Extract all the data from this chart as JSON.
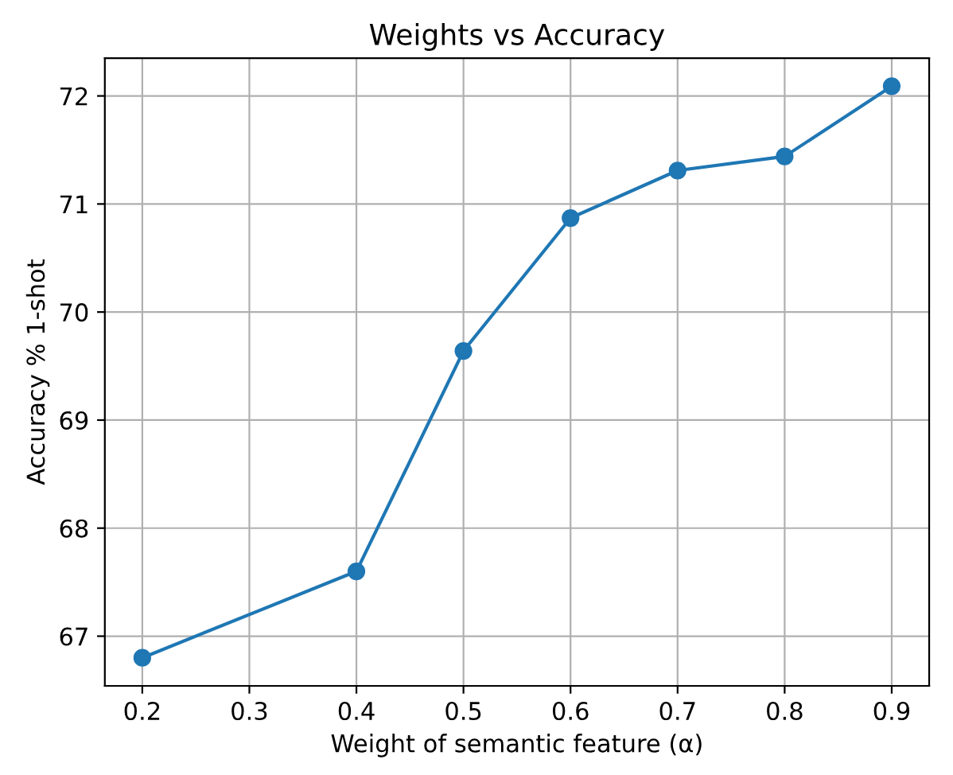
{
  "chart_data": {
    "type": "line",
    "title": "Weights vs Accuracy",
    "xlabel": "Weight of semantic feature (α)",
    "ylabel": "Accuracy % 1-shot",
    "x": [
      0.2,
      0.4,
      0.5,
      0.6,
      0.7,
      0.8,
      0.9
    ],
    "series": [
      {
        "color": "#1f77b4",
        "values": [
          66.8,
          67.6,
          69.64,
          70.87,
          71.31,
          71.44,
          72.09
        ]
      }
    ],
    "xlim": [
      0.165,
      0.935
    ],
    "ylim": [
      66.54,
      72.35
    ],
    "xticks": [
      0.2,
      0.3,
      0.4,
      0.5,
      0.6,
      0.7,
      0.8,
      0.9
    ],
    "yticks": [
      67,
      68,
      69,
      70,
      71,
      72
    ],
    "grid": true,
    "marker": "circle",
    "line_style": "solid"
  }
}
